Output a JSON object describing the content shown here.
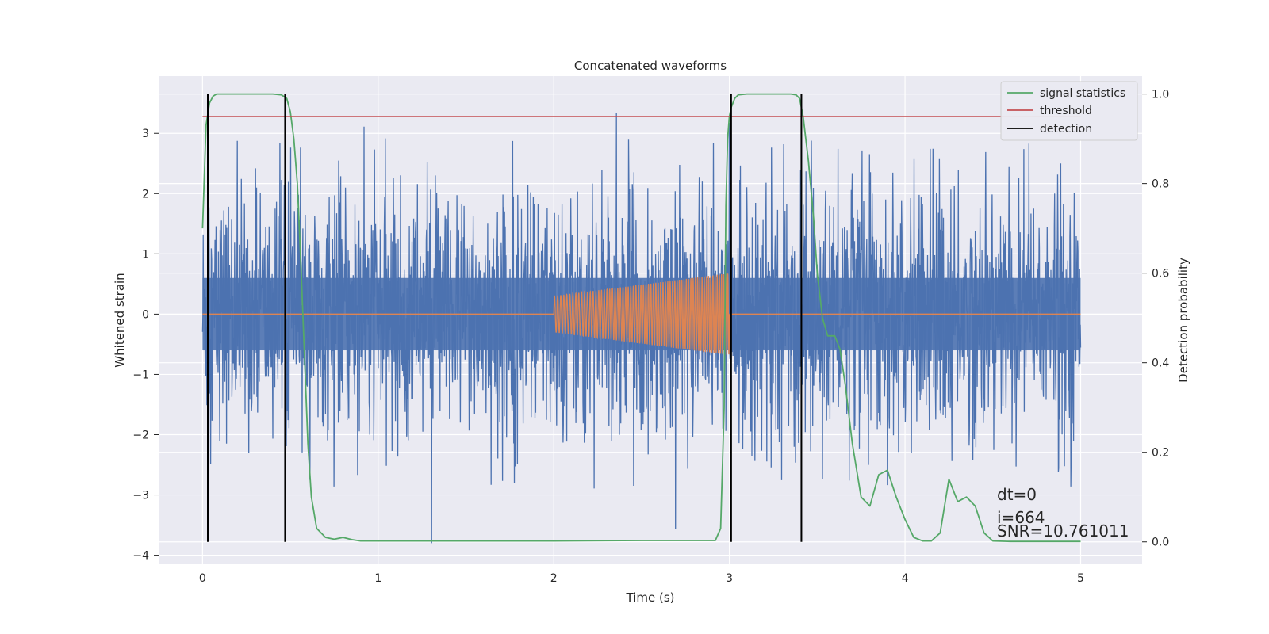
{
  "chart_data": {
    "type": "line",
    "title": "Concatenated waveforms",
    "xlabel": "Time (s)",
    "ylabel": "Whitened strain",
    "ylabel_right": "Detection probability",
    "xlim": [
      -0.25,
      5.35
    ],
    "ylim": [
      -4.15,
      3.95
    ],
    "ylim_right": [
      -0.05,
      1.04
    ],
    "x_ticks": [
      0,
      1,
      2,
      3,
      4,
      5
    ],
    "y_ticks": [
      -4,
      -3,
      -2,
      -1,
      0,
      1,
      2,
      3
    ],
    "y_ticks_right": [
      0.0,
      0.2,
      0.4,
      0.6,
      0.8,
      1.0
    ],
    "y_tick_labels_right": [
      "0.0",
      "0.2",
      "0.4",
      "0.6",
      "0.8",
      "1.0"
    ],
    "grid": true,
    "legend_position": "top-right",
    "legend": [
      "signal statistics",
      "threshold",
      "detection"
    ],
    "series": [
      {
        "name": "signal statistics",
        "axis": "right",
        "color": "#55a868",
        "x": [
          0.0,
          0.02,
          0.04,
          0.06,
          0.08,
          0.1,
          0.15,
          0.2,
          0.3,
          0.4,
          0.45,
          0.48,
          0.5,
          0.52,
          0.54,
          0.56,
          0.58,
          0.6,
          0.62,
          0.65,
          0.7,
          0.75,
          0.8,
          0.85,
          0.9,
          1.0,
          1.5,
          2.0,
          2.5,
          2.85,
          2.92,
          2.95,
          2.97,
          2.98,
          2.99,
          3.0,
          3.01,
          3.03,
          3.05,
          3.1,
          3.2,
          3.3,
          3.35,
          3.38,
          3.4,
          3.42,
          3.45,
          3.48,
          3.5,
          3.53,
          3.56,
          3.6,
          3.63,
          3.66,
          3.7,
          3.75,
          3.8,
          3.85,
          3.9,
          3.95,
          4.0,
          4.05,
          4.1,
          4.15,
          4.2,
          4.25,
          4.3,
          4.35,
          4.4,
          4.45,
          4.5,
          4.6,
          4.8,
          5.0
        ],
        "y": [
          0.7,
          0.93,
          0.98,
          0.995,
          1.0,
          1.0,
          1.0,
          1.0,
          1.0,
          1.0,
          0.998,
          0.99,
          0.96,
          0.9,
          0.8,
          0.62,
          0.42,
          0.22,
          0.1,
          0.03,
          0.01,
          0.006,
          0.01,
          0.005,
          0.002,
          0.002,
          0.002,
          0.002,
          0.003,
          0.003,
          0.003,
          0.03,
          0.3,
          0.75,
          0.9,
          0.95,
          0.97,
          0.99,
          0.998,
          1.0,
          1.0,
          1.0,
          1.0,
          0.998,
          0.99,
          0.95,
          0.85,
          0.72,
          0.6,
          0.5,
          0.46,
          0.46,
          0.43,
          0.35,
          0.22,
          0.1,
          0.08,
          0.15,
          0.16,
          0.1,
          0.05,
          0.01,
          0.002,
          0.002,
          0.02,
          0.14,
          0.09,
          0.1,
          0.08,
          0.02,
          0.002,
          0.001,
          0.001,
          0.001
        ]
      },
      {
        "name": "threshold",
        "axis": "right",
        "color": "#c44e52",
        "x": [
          0.0,
          5.0
        ],
        "y": [
          0.95,
          0.95
        ]
      }
    ],
    "detections": {
      "name": "detection",
      "color": "#000000",
      "x": [
        0.03,
        0.47,
        3.01,
        3.41
      ],
      "y_range": [
        0.0,
        1.0
      ]
    },
    "noise_series": {
      "color": "#4c72b0",
      "x_range": [
        0.0,
        5.0
      ],
      "envelope": [
        -0.6,
        0.6
      ],
      "spike_max": 3.6,
      "spike_min": -3.8
    },
    "chirp_series": {
      "color": "#dd8452",
      "flat_ranges": [
        [
          0.0,
          2.0
        ],
        [
          3.0,
          5.0
        ]
      ],
      "chirp_range": [
        2.0,
        3.0
      ],
      "amplitude_start": 0.3,
      "amplitude_end": 0.68,
      "cycles": 56
    },
    "annotations": [
      "dt=0",
      "i=664",
      "SNR=10.761011"
    ]
  }
}
